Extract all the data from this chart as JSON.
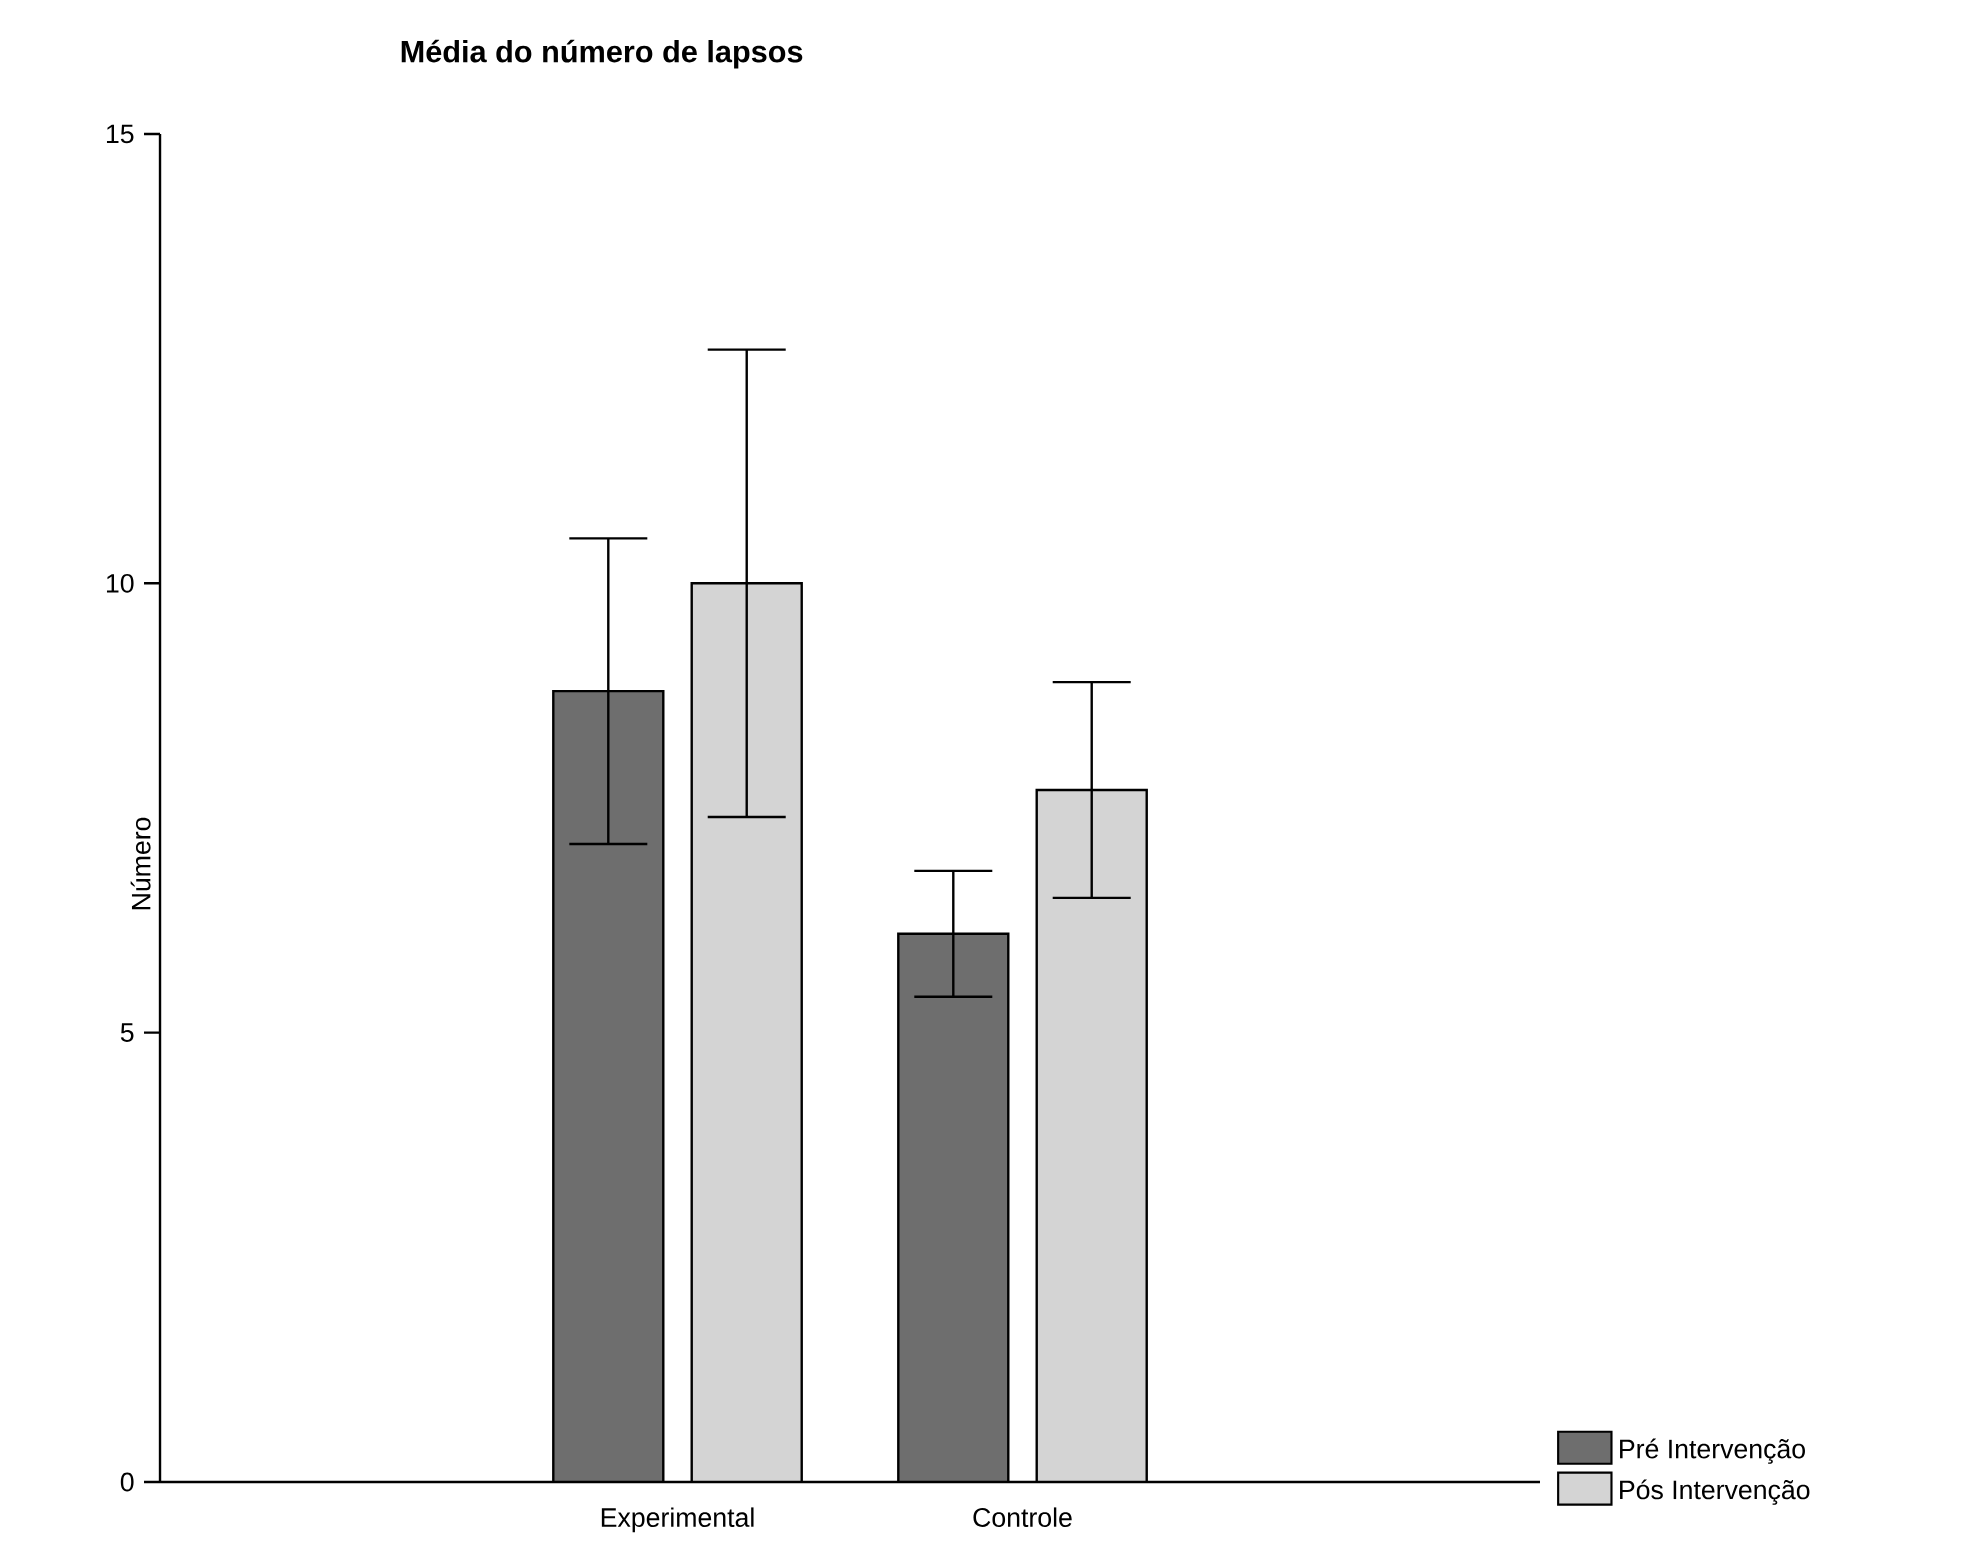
{
  "chart_data": {
    "type": "bar",
    "title": "Média do número de lapsos",
    "ylabel": "Número",
    "categories": [
      "Experimental",
      "Controle"
    ],
    "series": [
      {
        "name": "Pré Intervenção",
        "color": "#6e6e6e",
        "values": [
          8.8,
          6.1
        ],
        "errors": [
          1.7,
          0.7
        ]
      },
      {
        "name": "Pós Intervenção",
        "color": "#d4d4d4",
        "values": [
          10.0,
          7.7
        ],
        "errors": [
          2.6,
          1.2
        ]
      }
    ],
    "ylim": [
      0,
      15
    ],
    "yticks": [
      0,
      5,
      10,
      15
    ],
    "grid": false,
    "legend": "bottom right"
  }
}
